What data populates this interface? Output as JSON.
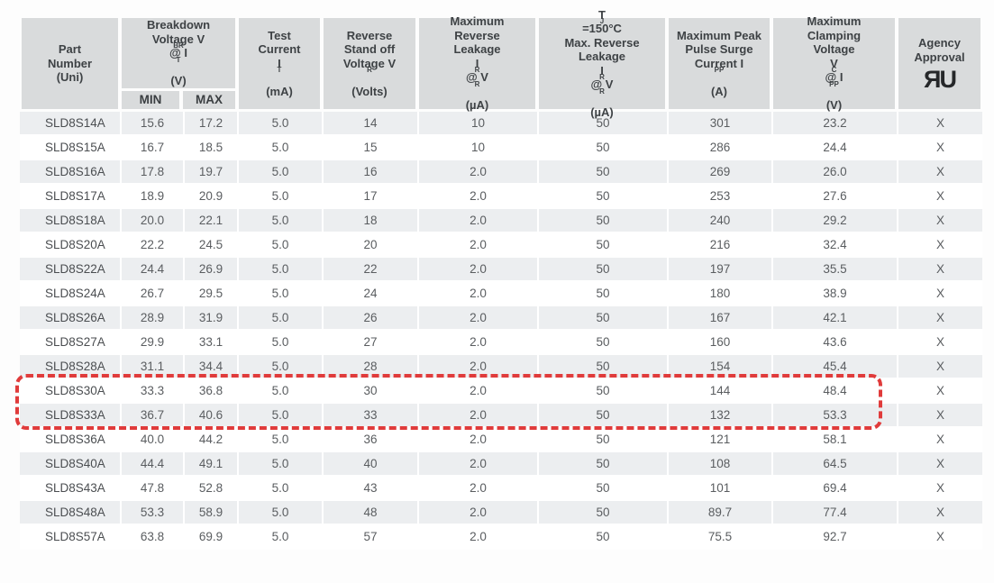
{
  "table": {
    "headers": {
      "part": [
        "Part",
        "Number",
        "(Uni)"
      ],
      "breakdown": [
        "Breakdown",
        "Voltage V~BR~ @ I~T~",
        "(V)"
      ],
      "min": "MIN",
      "max": "MAX",
      "test_current": [
        "Test",
        "Current",
        "I~T~",
        "(mA)"
      ],
      "standoff": [
        "Reverse",
        "Stand off",
        "Voltage V~R~",
        "(Volts)"
      ],
      "max_leakage": [
        "Maximum",
        "Reverse",
        "Leakage",
        "I~R~ @ V~R~",
        "(µA)"
      ],
      "tj_leakage": [
        "T~J~=150°C",
        "Max. Reverse",
        "Leakage",
        "I~R~ @ V~R~",
        "(µA)"
      ],
      "surge": [
        "Maximum Peak",
        "Pulse Surge",
        "Current I~PP~",
        "(A)"
      ],
      "clamping": [
        "Maximum",
        "Clamping",
        "Voltage",
        "V~C~ @ I~PP~",
        "(V)"
      ],
      "agency": [
        "Agency",
        "Approval"
      ],
      "agency_logo": "ЯU"
    },
    "columns": [
      "part",
      "min",
      "max",
      "test_current",
      "standoff",
      "max_leakage",
      "tj_leakage",
      "surge",
      "clamping",
      "agency"
    ],
    "rows": [
      [
        "SLD8S14A",
        "15.6",
        "17.2",
        "5.0",
        "14",
        "10",
        "50",
        "301",
        "23.2",
        "X"
      ],
      [
        "SLD8S15A",
        "16.7",
        "18.5",
        "5.0",
        "15",
        "10",
        "50",
        "286",
        "24.4",
        "X"
      ],
      [
        "SLD8S16A",
        "17.8",
        "19.7",
        "5.0",
        "16",
        "2.0",
        "50",
        "269",
        "26.0",
        "X"
      ],
      [
        "SLD8S17A",
        "18.9",
        "20.9",
        "5.0",
        "17",
        "2.0",
        "50",
        "253",
        "27.6",
        "X"
      ],
      [
        "SLD8S18A",
        "20.0",
        "22.1",
        "5.0",
        "18",
        "2.0",
        "50",
        "240",
        "29.2",
        "X"
      ],
      [
        "SLD8S20A",
        "22.2",
        "24.5",
        "5.0",
        "20",
        "2.0",
        "50",
        "216",
        "32.4",
        "X"
      ],
      [
        "SLD8S22A",
        "24.4",
        "26.9",
        "5.0",
        "22",
        "2.0",
        "50",
        "197",
        "35.5",
        "X"
      ],
      [
        "SLD8S24A",
        "26.7",
        "29.5",
        "5.0",
        "24",
        "2.0",
        "50",
        "180",
        "38.9",
        "X"
      ],
      [
        "SLD8S26A",
        "28.9",
        "31.9",
        "5.0",
        "26",
        "2.0",
        "50",
        "167",
        "42.1",
        "X"
      ],
      [
        "SLD8S27A",
        "29.9",
        "33.1",
        "5.0",
        "27",
        "2.0",
        "50",
        "160",
        "43.6",
        "X"
      ],
      [
        "SLD8S28A",
        "31.1",
        "34.4",
        "5.0",
        "28",
        "2.0",
        "50",
        "154",
        "45.4",
        "X"
      ],
      [
        "SLD8S30A",
        "33.3",
        "36.8",
        "5.0",
        "30",
        "2.0",
        "50",
        "144",
        "48.4",
        "X"
      ],
      [
        "SLD8S33A",
        "36.7",
        "40.6",
        "5.0",
        "33",
        "2.0",
        "50",
        "132",
        "53.3",
        "X"
      ],
      [
        "SLD8S36A",
        "40.0",
        "44.2",
        "5.0",
        "36",
        "2.0",
        "50",
        "121",
        "58.1",
        "X"
      ],
      [
        "SLD8S40A",
        "44.4",
        "49.1",
        "5.0",
        "40",
        "2.0",
        "50",
        "108",
        "64.5",
        "X"
      ],
      [
        "SLD8S43A",
        "47.8",
        "52.8",
        "5.0",
        "43",
        "2.0",
        "50",
        "101",
        "69.4",
        "X"
      ],
      [
        "SLD8S48A",
        "53.3",
        "58.9",
        "5.0",
        "48",
        "2.0",
        "50",
        "89.7",
        "77.4",
        "X"
      ],
      [
        "SLD8S57A",
        "63.8",
        "69.9",
        "5.0",
        "57",
        "2.0",
        "50",
        "75.5",
        "92.7",
        "X"
      ]
    ],
    "highlight": {
      "parts": [
        "SLD8S30A",
        "SLD8S33A"
      ],
      "color": "#e03b3b"
    }
  }
}
